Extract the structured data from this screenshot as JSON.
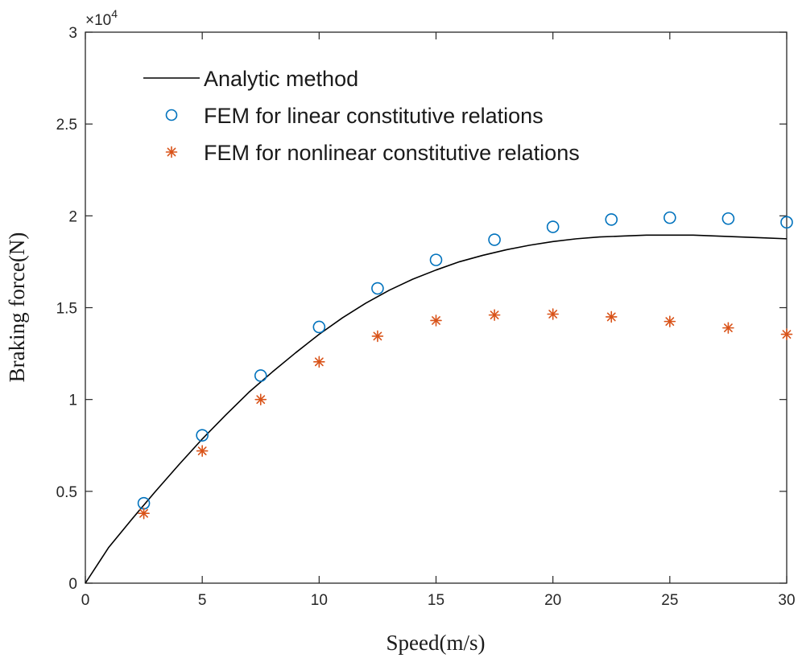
{
  "chart_data": {
    "type": "line",
    "title": "",
    "xlabel": "Speed(m/s)",
    "ylabel": "Braking force(N)",
    "xlim": [
      0,
      30
    ],
    "ylim": [
      0,
      30000
    ],
    "xticks": [
      0,
      5,
      10,
      15,
      20,
      25,
      30
    ],
    "yticks": [
      0,
      5000,
      10000,
      15000,
      20000,
      25000,
      30000
    ],
    "xtick_labels": [
      "0",
      "5",
      "10",
      "15",
      "20",
      "25",
      "30"
    ],
    "ytick_labels": [
      "0",
      "0.5",
      "1",
      "1.5",
      "2",
      "2.5",
      "3"
    ],
    "y_exponent": {
      "base": "×10",
      "power": "4"
    },
    "grid": false,
    "legend_position": "top-left",
    "series": [
      {
        "name": "Analytic method",
        "style": "line",
        "color": "#000000",
        "x": [
          0,
          1,
          2,
          3,
          4,
          5,
          6,
          7,
          8,
          9,
          10,
          11,
          12,
          13,
          14,
          15,
          16,
          17,
          18,
          19,
          20,
          21,
          22,
          23,
          24,
          25,
          26,
          27,
          28,
          29,
          30
        ],
        "y": [
          0,
          1950,
          3500,
          5000,
          6450,
          7850,
          9150,
          10400,
          11500,
          12550,
          13550,
          14450,
          15250,
          15950,
          16550,
          17050,
          17500,
          17850,
          18150,
          18400,
          18600,
          18750,
          18850,
          18900,
          18950,
          18950,
          18950,
          18900,
          18850,
          18800,
          18750
        ]
      },
      {
        "name": "FEM for linear constitutive relations",
        "style": "circle",
        "color": "#0072BD",
        "x": [
          2.5,
          5,
          7.5,
          10,
          12.5,
          15,
          17.5,
          20,
          22.5,
          25,
          27.5,
          30
        ],
        "y": [
          4350,
          8050,
          11300,
          13950,
          16050,
          17600,
          18700,
          19400,
          19800,
          19900,
          19850,
          19650
        ]
      },
      {
        "name": "FEM for nonlinear constitutive relations",
        "style": "asterisk",
        "color": "#D95319",
        "x": [
          2.5,
          5,
          7.5,
          10,
          12.5,
          15,
          17.5,
          20,
          22.5,
          25,
          27.5,
          30
        ],
        "y": [
          3800,
          7200,
          10000,
          12050,
          13450,
          14300,
          14600,
          14650,
          14500,
          14250,
          13900,
          13550
        ]
      }
    ]
  }
}
